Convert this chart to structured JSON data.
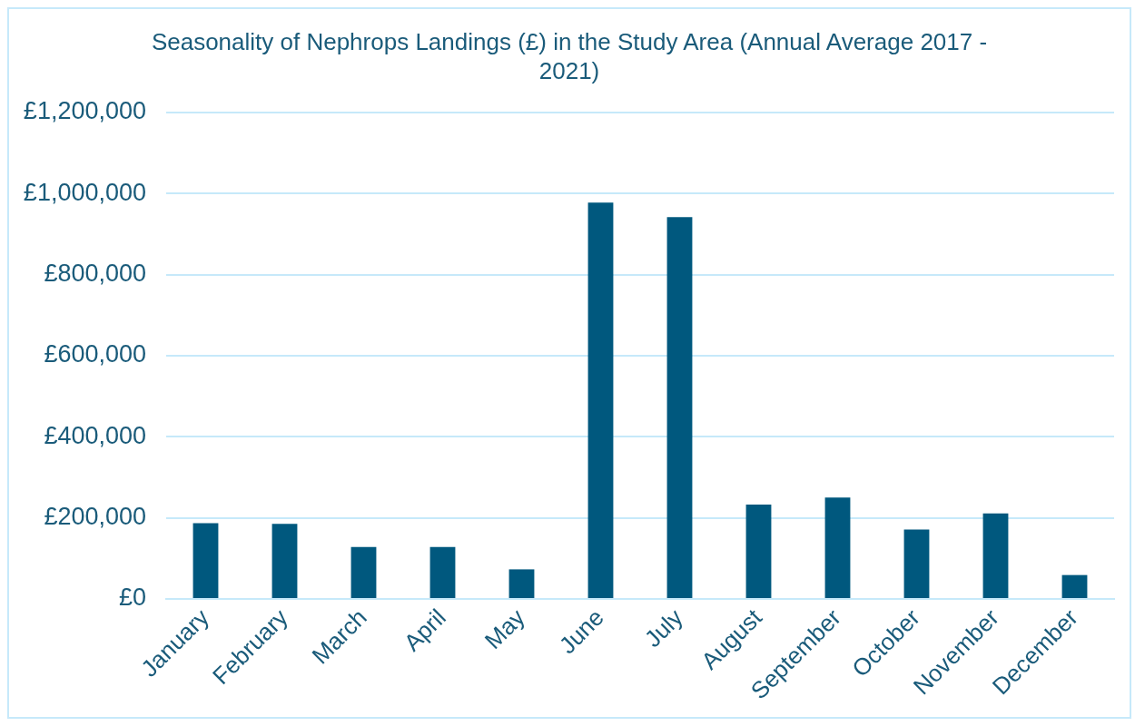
{
  "chart_data": {
    "type": "bar",
    "title": "Seasonality of Nephrops Landings (£) in the Study Area (Annual Average 2017 - 2021)",
    "categories": [
      "January",
      "February",
      "March",
      "April",
      "May",
      "June",
      "July",
      "August",
      "September",
      "October",
      "November",
      "December"
    ],
    "values": [
      187000,
      185000,
      128000,
      128000,
      73000,
      978000,
      942000,
      233000,
      250000,
      171000,
      211000,
      59000
    ],
    "color": "#00587e",
    "ylim": [
      0,
      1200000
    ],
    "yticks": [
      {
        "value": 0,
        "label": "£0"
      },
      {
        "value": 200000,
        "label": "£200,000"
      },
      {
        "value": 400000,
        "label": "£400,000"
      },
      {
        "value": 600000,
        "label": "£600,000"
      },
      {
        "value": 800000,
        "label": "£800,000"
      },
      {
        "value": 1000000,
        "label": "£1,000,000"
      },
      {
        "value": 1200000,
        "label": "£1,200,000"
      }
    ],
    "grid": "y"
  }
}
